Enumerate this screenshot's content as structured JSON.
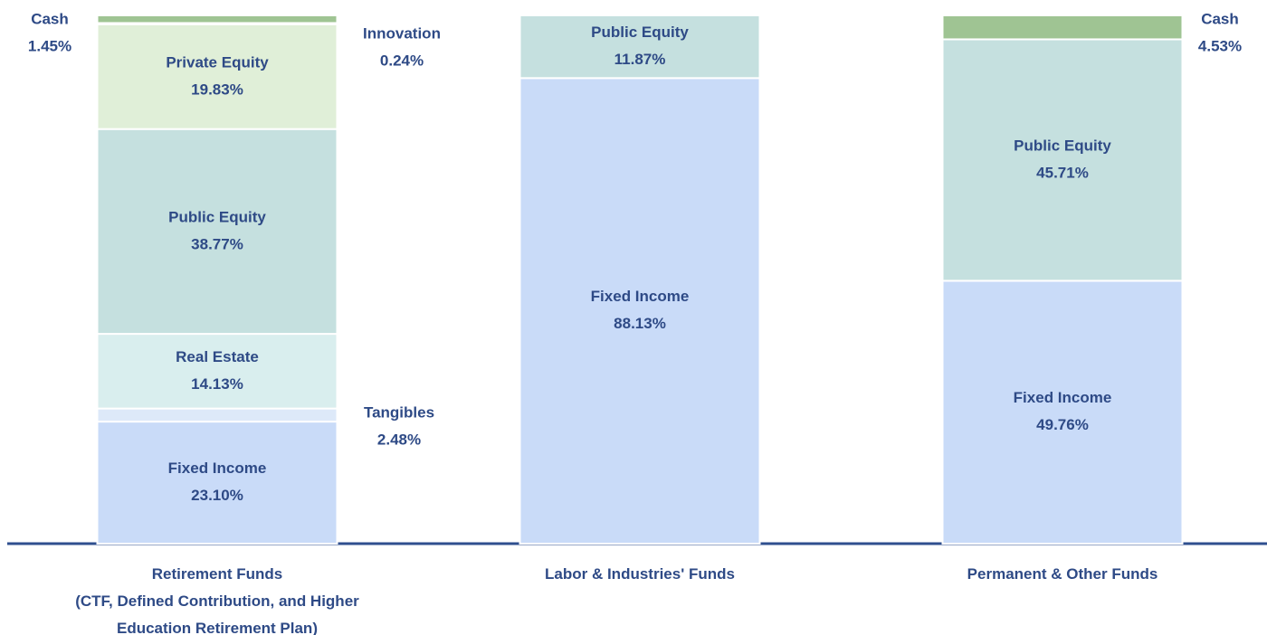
{
  "chart_data": {
    "type": "bar",
    "stacked": true,
    "categories": [
      "Retirement Funds\n(CTF, Defined Contribution, and Higher\nEducation Retirement Plan)",
      "Labor & Industries' Funds",
      "Permanent & Other Funds"
    ],
    "series": [
      {
        "name": "Fixed Income",
        "color": "#c9dbf8",
        "values": [
          23.1,
          88.13,
          49.76
        ],
        "value_labels": [
          "23.10%",
          "88.13%",
          "49.76%"
        ]
      },
      {
        "name": "Tangibles",
        "color": "#dde9f9",
        "values": [
          2.48,
          null,
          null
        ],
        "value_labels": [
          "2.48%",
          null,
          null
        ]
      },
      {
        "name": "Real Estate",
        "color": "#d9eeee",
        "values": [
          14.13,
          null,
          null
        ],
        "value_labels": [
          "14.13%",
          null,
          null
        ]
      },
      {
        "name": "Public Equity",
        "color": "#c5e0df",
        "values": [
          38.77,
          11.87,
          45.71
        ],
        "value_labels": [
          "38.77%",
          "11.87%",
          "45.71%"
        ]
      },
      {
        "name": "Private Equity",
        "color": "#e0efd8",
        "values": [
          19.83,
          null,
          null
        ],
        "value_labels": [
          "19.83%",
          null,
          null
        ]
      },
      {
        "name": "Innovation",
        "color": "#c3dcbb",
        "values": [
          0.24,
          null,
          null
        ],
        "value_labels": [
          "0.24%",
          null,
          null
        ]
      },
      {
        "name": "Cash",
        "color": "#9fc493",
        "values": [
          1.45,
          null,
          4.53
        ],
        "value_labels": [
          "1.45%",
          null,
          "4.53%"
        ]
      }
    ]
  }
}
